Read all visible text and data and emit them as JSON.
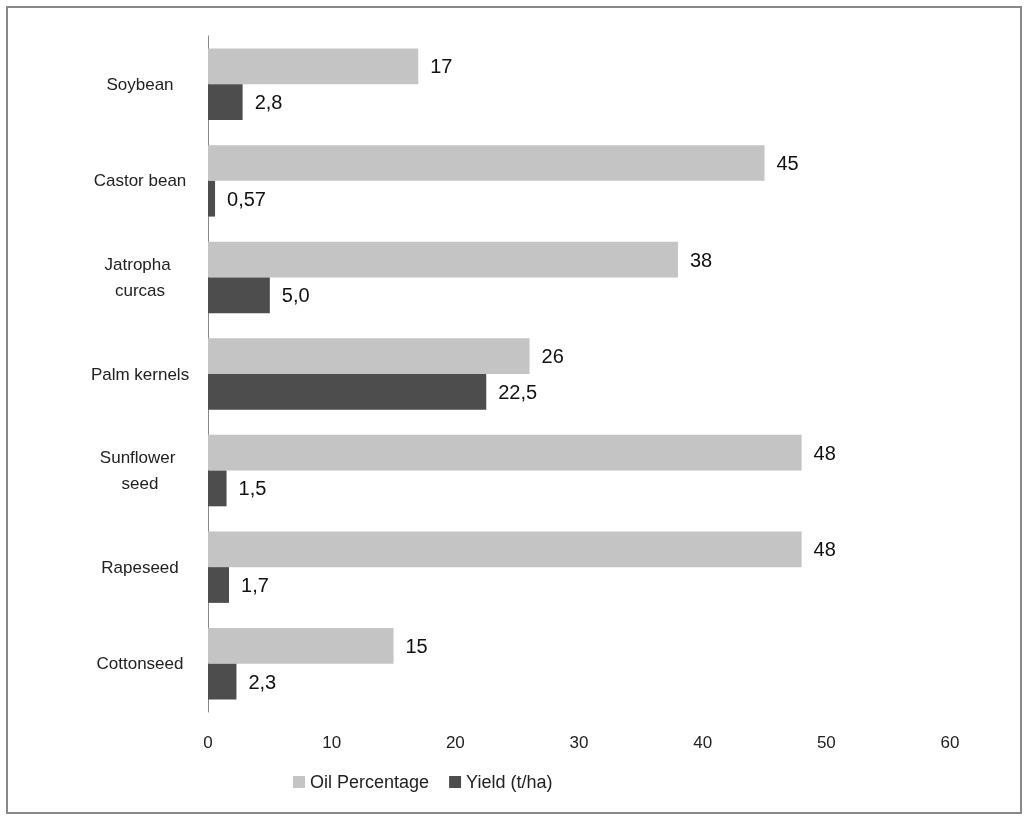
{
  "chart_data": {
    "type": "bar",
    "orientation": "horizontal",
    "categories": [
      "Soybean",
      "Castor bean",
      "Jatropha curcas",
      "Palm kernels",
      "Sunflower seed",
      "Rapeseed",
      "Cottonseed"
    ],
    "series": [
      {
        "name": "Oil Percentage",
        "color": "#c4c4c4",
        "values": [
          17,
          45,
          38,
          26,
          48,
          48,
          15
        ],
        "value_labels": [
          "17",
          "45",
          "38",
          "26",
          "48",
          "48",
          "15"
        ]
      },
      {
        "name": "Yield (t/ha)",
        "color": "#4d4d4d",
        "values": [
          2.8,
          0.57,
          5.0,
          22.5,
          1.5,
          1.7,
          2.3
        ],
        "value_labels": [
          "2,8",
          "0,57",
          "5,0",
          "22,5",
          "1,5",
          "1,7",
          "2,3"
        ]
      }
    ],
    "xlim": [
      0,
      60
    ],
    "xticks": [
      0,
      10,
      20,
      30,
      40,
      50,
      60
    ],
    "grid": false,
    "legend": "bottom"
  }
}
